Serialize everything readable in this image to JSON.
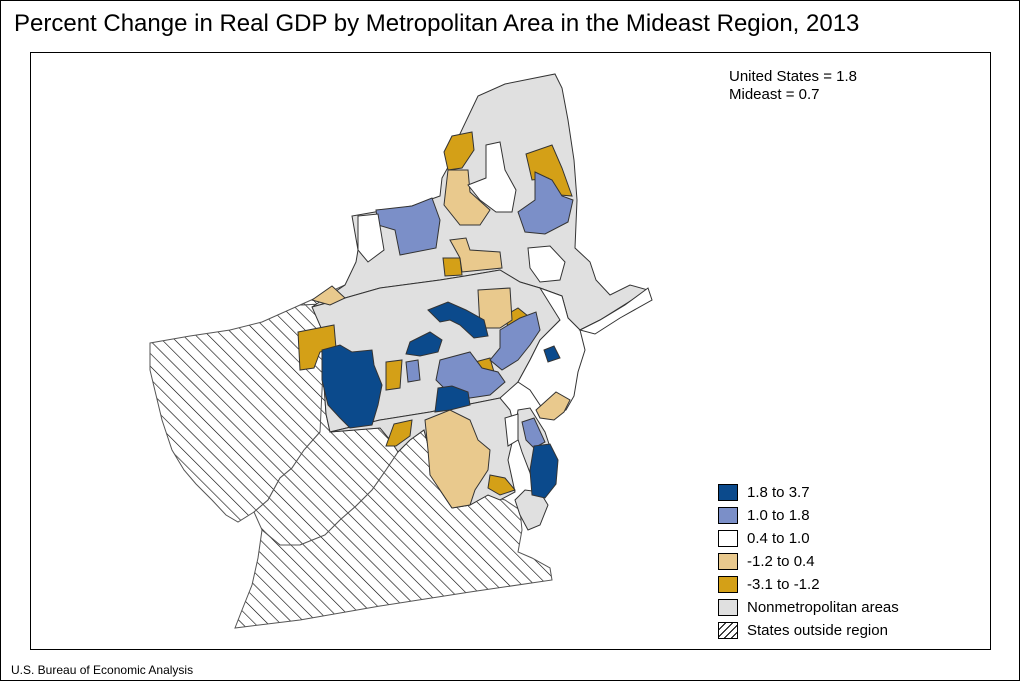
{
  "title": "Percent Change in Real GDP by Metropolitan Area in the Mideast Region, 2013",
  "stats": {
    "united_states": "United States = 1.8",
    "mideast": "Mideast = 0.7"
  },
  "legend": [
    {
      "label": "1.8 to 3.7",
      "color": "#0b4a8c",
      "pattern": false
    },
    {
      "label": "1.0 to 1.8",
      "color": "#7b8fc8",
      "pattern": false
    },
    {
      "label": "0.4 to 1.0",
      "color": "#ffffff",
      "pattern": false
    },
    {
      "label": "-1.2 to 0.4",
      "color": "#e9c98d",
      "pattern": false
    },
    {
      "label": "-3.1 to -1.2",
      "color": "#d4a017",
      "pattern": false
    },
    {
      "label": "Nonmetropolitan areas",
      "color": "#e0e0e0",
      "pattern": false
    },
    {
      "label": "States outside region",
      "color": "#ffffff",
      "pattern": true
    }
  ],
  "source": "U.S. Bureau of Economic Analysis"
}
